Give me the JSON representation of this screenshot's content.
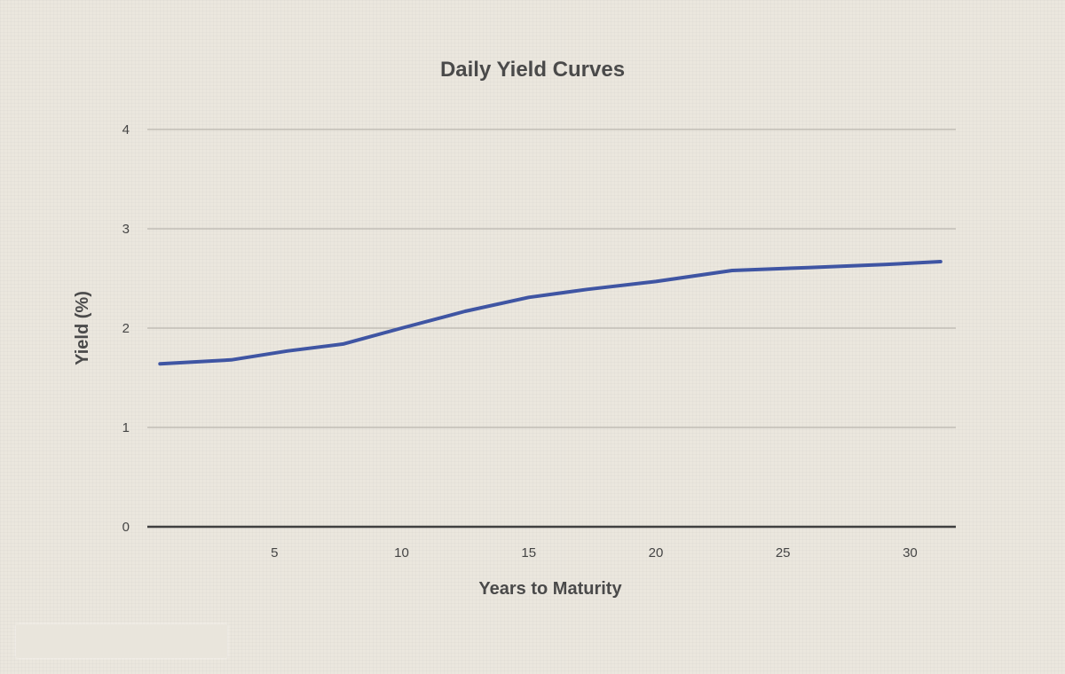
{
  "chart_data": {
    "type": "line",
    "title": "Daily Yield Curves",
    "xlabel": "Years to Maturity",
    "ylabel": "Yield (%)",
    "xlim": [
      0,
      31.8
    ],
    "ylim": [
      0,
      4
    ],
    "x_ticks": [
      5,
      10,
      15,
      20,
      25,
      30
    ],
    "y_ticks": [
      0,
      1,
      2,
      3,
      4
    ],
    "grid": true,
    "series": [
      {
        "color": "#3f55a3",
        "x": [
          0.5,
          3.3,
          5.5,
          7.7,
          10,
          12.5,
          15,
          17.3,
          20,
          23,
          26,
          29,
          31.2
        ],
        "y": [
          1.64,
          1.68,
          1.77,
          1.84,
          2.0,
          2.17,
          2.31,
          2.39,
          2.47,
          2.58,
          2.61,
          2.64,
          2.67
        ]
      }
    ]
  }
}
